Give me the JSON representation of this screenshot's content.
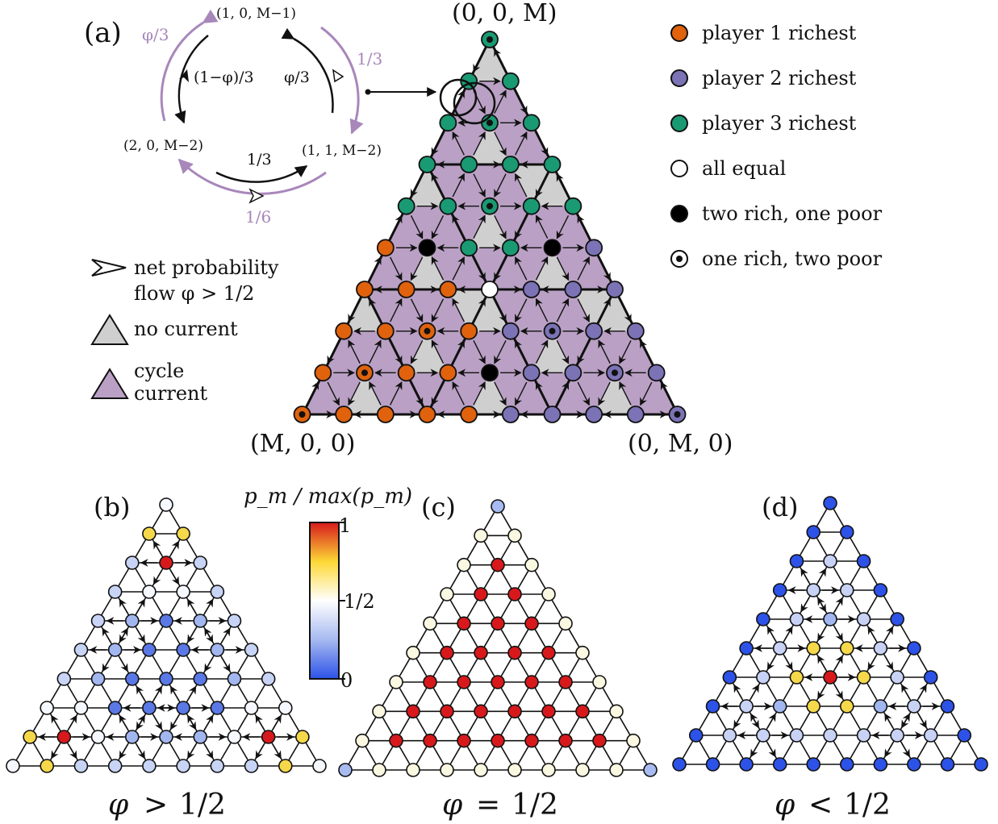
{
  "panel_a": {
    "label": "(a)",
    "cycle": {
      "states": [
        "(1, 0, M−1)",
        "(2, 0, M−2)",
        "(1, 1, M−2)"
      ],
      "inner_rates": [
        "(1−φ)/3",
        "φ/3",
        "1/3"
      ],
      "outer_rates": [
        "φ/3",
        "1/3",
        "1/6"
      ]
    },
    "corners": [
      "(0, 0, M)",
      "(M, 0, 0)",
      "(0, M, 0)"
    ],
    "legend": {
      "flow_line1": "net probability",
      "flow_line2": "flow φ > 1/2",
      "no_current": "no current",
      "cycle_line1": "cycle",
      "cycle_line2": "current"
    },
    "node_legend": [
      {
        "label": "player 1 richest",
        "color": "#e0620d"
      },
      {
        "label": "player 2 richest",
        "color": "#7b73b6"
      },
      {
        "label": "player 3 richest",
        "color": "#1a9a73"
      },
      {
        "label": "all equal",
        "color": "#ffffff"
      },
      {
        "label": "two rich, one poor",
        "color": "#000000"
      },
      {
        "label": "one rich, two poor",
        "color": "#000000"
      }
    ],
    "colors": {
      "cycle": "#b9a0c4",
      "no_current": "#cfcfcf",
      "flow_outer": "#a887bb"
    }
  },
  "colorbar": {
    "title": "p_m / max(p_m)",
    "ticks": [
      "1",
      "1/2",
      "0"
    ]
  },
  "panels": [
    {
      "label": "(b)",
      "caption_sym": "φ",
      "caption_rel": ">",
      "caption_val": "1/2"
    },
    {
      "label": "(c)",
      "caption_sym": "φ",
      "caption_rel": "=",
      "caption_val": "1/2"
    },
    {
      "label": "(d)",
      "caption_sym": "φ",
      "caption_rel": "<",
      "caption_val": "1/2"
    }
  ]
}
